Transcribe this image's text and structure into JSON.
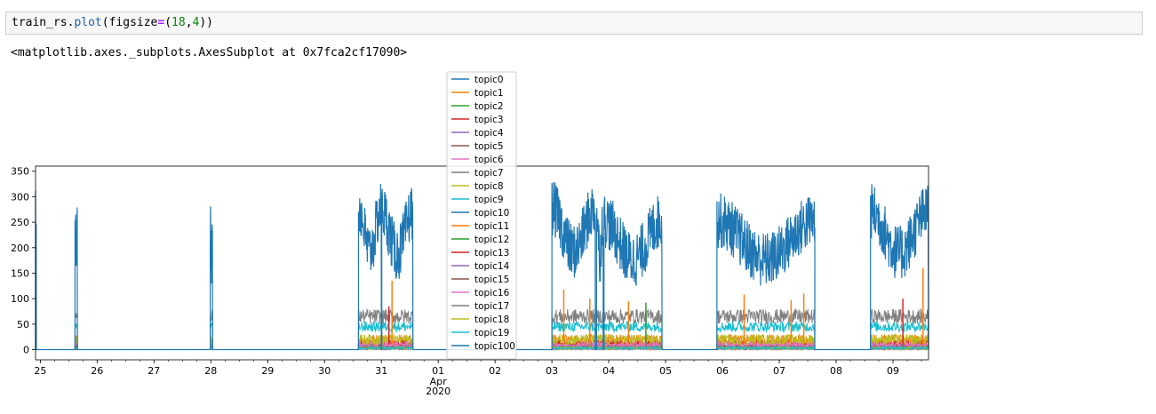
{
  "cell": {
    "code_var": "train_rs",
    "code_dot": ".",
    "code_method": "plot",
    "code_open": "(",
    "code_kw": "figsize",
    "code_eq": "=",
    "code_tuple_open": "(",
    "code_n1": "18",
    "code_comma": ",",
    "code_n2": "4",
    "code_tuple_close": "))",
    "output_text": "<matplotlib.axes._subplots.AxesSubplot at 0x7fca2cf17090>"
  },
  "chart_data": {
    "type": "line",
    "title": "",
    "xlabel": "",
    "ylabel": "",
    "xlim": [
      "2020-03-24T22:00",
      "2020-04-09T15:00"
    ],
    "ylim": [
      -20,
      360
    ],
    "yticks": [
      0,
      50,
      100,
      150,
      200,
      250,
      300,
      350
    ],
    "xticks": [
      {
        "label": "25",
        "date": "2020-03-25"
      },
      {
        "label": "26",
        "date": "2020-03-26"
      },
      {
        "label": "27",
        "date": "2020-03-27"
      },
      {
        "label": "28",
        "date": "2020-03-28"
      },
      {
        "label": "29",
        "date": "2020-03-29"
      },
      {
        "label": "30",
        "date": "2020-03-30"
      },
      {
        "label": "31",
        "date": "2020-03-31"
      },
      {
        "label": "01",
        "date": "2020-04-01",
        "sub": [
          "Apr",
          "2020"
        ]
      },
      {
        "label": "02",
        "date": "2020-04-02"
      },
      {
        "label": "03",
        "date": "2020-04-03"
      },
      {
        "label": "04",
        "date": "2020-04-04"
      },
      {
        "label": "05",
        "date": "2020-04-05"
      },
      {
        "label": "06",
        "date": "2020-04-06"
      },
      {
        "label": "07",
        "date": "2020-04-07"
      },
      {
        "label": "08",
        "date": "2020-04-08"
      },
      {
        "label": "09",
        "date": "2020-04-09"
      }
    ],
    "grid": false,
    "legend_position": "upper-center",
    "active_periods": [
      {
        "start": "2020-03-24T22:00",
        "end": "2020-03-24T22:20",
        "level": 230
      },
      {
        "start": "2020-03-25T14:40",
        "end": "2020-03-25T15:40",
        "level": 250
      },
      {
        "start": "2020-03-27T23:45",
        "end": "2020-03-28T00:45",
        "level": 210
      },
      {
        "start": "2020-03-30T14:20",
        "end": "2020-03-31T00:00",
        "level": 235
      },
      {
        "start": "2020-03-31T00:10",
        "end": "2020-03-31T13:20",
        "level": 230
      },
      {
        "start": "2020-04-03T00:00",
        "end": "2020-04-03T18:20",
        "level": 235
      },
      {
        "start": "2020-04-03T18:50",
        "end": "2020-04-03T21:40",
        "level": 225
      },
      {
        "start": "2020-04-03T22:00",
        "end": "2020-04-04T22:30",
        "level": 215
      },
      {
        "start": "2020-04-05T21:40",
        "end": "2020-04-07T15:00",
        "level": 215
      },
      {
        "start": "2020-04-08T14:30",
        "end": "2020-04-09T15:00",
        "level": 230
      }
    ],
    "series": [
      {
        "name": "topic0",
        "color": "#1f77b4",
        "level": 5
      },
      {
        "name": "topic1",
        "color": "#ff7f0e",
        "level": 20
      },
      {
        "name": "topic2",
        "color": "#2ca02c",
        "level": 8
      },
      {
        "name": "topic3",
        "color": "#d62728",
        "level": 12
      },
      {
        "name": "topic4",
        "color": "#9467bd",
        "level": 6
      },
      {
        "name": "topic5",
        "color": "#8c564b",
        "level": 4
      },
      {
        "name": "topic6",
        "color": "#e377c2",
        "level": 10
      },
      {
        "name": "topic7",
        "color": "#7f7f7f",
        "level": 65
      },
      {
        "name": "topic8",
        "color": "#bcbd22",
        "level": 20
      },
      {
        "name": "topic9",
        "color": "#17becf",
        "level": 45
      },
      {
        "name": "topic10",
        "color": "#1f77b4",
        "level": 3
      },
      {
        "name": "topic11",
        "color": "#ff7f0e",
        "level": 3
      },
      {
        "name": "topic12",
        "color": "#2ca02c",
        "level": 3
      },
      {
        "name": "topic13",
        "color": "#d62728",
        "level": 3
      },
      {
        "name": "topic14",
        "color": "#9467bd",
        "level": 3
      },
      {
        "name": "topic15",
        "color": "#8c564b",
        "level": 3
      },
      {
        "name": "topic16",
        "color": "#e377c2",
        "level": 3
      },
      {
        "name": "topic17",
        "color": "#7f7f7f",
        "level": 3
      },
      {
        "name": "topic18",
        "color": "#bcbd22",
        "level": 3
      },
      {
        "name": "topic19",
        "color": "#17becf",
        "level": 3
      },
      {
        "name": "topic100",
        "color": "#1f77b4",
        "level": 230
      }
    ],
    "spikes": [
      {
        "series": "topic1",
        "at": "2020-03-31T04:30",
        "value": 135
      },
      {
        "series": "topic3",
        "at": "2020-03-31T03:10",
        "value": 85
      },
      {
        "series": "topic1",
        "at": "2020-04-03T05:00",
        "value": 118
      },
      {
        "series": "topic1",
        "at": "2020-04-03T16:00",
        "value": 100
      },
      {
        "series": "topic1",
        "at": "2020-04-04T08:20",
        "value": 95
      },
      {
        "series": "topic2",
        "at": "2020-04-04T15:40",
        "value": 92
      },
      {
        "series": "topic1",
        "at": "2020-04-06T09:10",
        "value": 108
      },
      {
        "series": "topic1",
        "at": "2020-04-07T05:00",
        "value": 97
      },
      {
        "series": "topic1",
        "at": "2020-04-07T10:20",
        "value": 110
      },
      {
        "series": "topic3",
        "at": "2020-04-09T04:10",
        "value": 100
      },
      {
        "series": "topic1",
        "at": "2020-04-09T12:40",
        "value": 160
      }
    ]
  }
}
